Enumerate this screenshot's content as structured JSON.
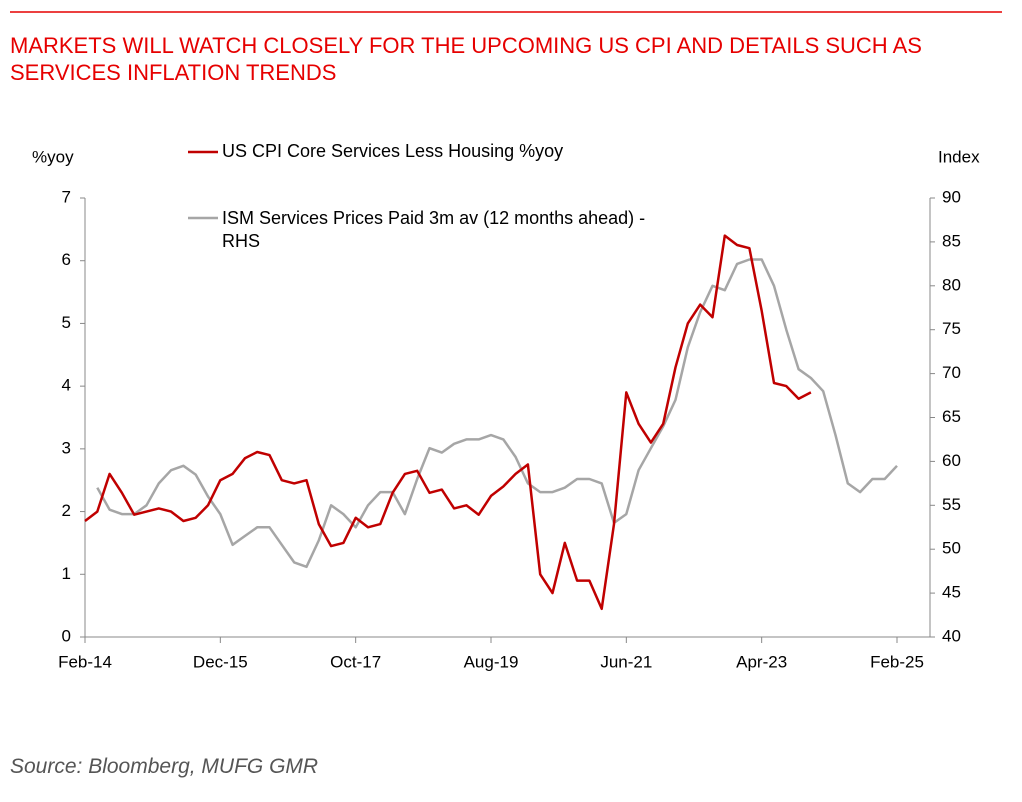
{
  "chart_data": {
    "type": "line",
    "title": "MARKETS WILL WATCH CLOSELY FOR THE UPCOMING US CPI AND DETAILS SUCH AS SERVICES INFLATION TRENDS",
    "source": "Source: Bloomberg, MUFG GMR",
    "y_label": "%yoy",
    "y2_label": "Index",
    "categories": [
      "Feb-14",
      null,
      null,
      null,
      null,
      null,
      null,
      null,
      null,
      null,
      null,
      "Dec-15",
      null,
      null,
      null,
      null,
      null,
      null,
      null,
      null,
      null,
      null,
      "Oct-17",
      null,
      null,
      null,
      null,
      null,
      null,
      null,
      null,
      null,
      null,
      "Aug-19",
      null,
      null,
      null,
      null,
      null,
      null,
      null,
      null,
      null,
      null,
      "Jun-21",
      null,
      null,
      null,
      null,
      null,
      null,
      null,
      null,
      null,
      null,
      "Apr-23",
      null,
      null,
      null,
      null,
      null,
      null,
      null,
      null,
      null,
      null,
      "Feb-25"
    ],
    "ylim": [
      0,
      7
    ],
    "yticks": [
      0,
      1,
      2,
      3,
      4,
      5,
      6,
      7
    ],
    "y2lim": [
      40,
      90
    ],
    "y2ticks": [
      40,
      45,
      50,
      55,
      60,
      65,
      70,
      75,
      80,
      85,
      90
    ],
    "series": [
      {
        "name": "US CPI Core Services Less Housing %yoy",
        "color": "#c00000",
        "axis": "y",
        "values": [
          1.85,
          2.0,
          2.6,
          2.3,
          1.95,
          2.0,
          2.05,
          2.0,
          1.85,
          1.9,
          2.1,
          2.5,
          2.6,
          2.85,
          2.95,
          2.9,
          2.5,
          2.45,
          2.5,
          1.8,
          1.45,
          1.5,
          1.9,
          1.75,
          1.8,
          2.3,
          2.6,
          2.65,
          2.3,
          2.35,
          2.05,
          2.1,
          1.95,
          2.25,
          2.4,
          2.6,
          2.75,
          1.0,
          0.7,
          1.5,
          0.9,
          0.9,
          0.45,
          1.8,
          3.9,
          3.4,
          3.1,
          3.4,
          4.3,
          5.0,
          5.3,
          5.1,
          6.4,
          6.25,
          6.2,
          5.2,
          4.05,
          4.0,
          3.8,
          3.9,
          null,
          null,
          null,
          null,
          null,
          null,
          null
        ]
      },
      {
        "name": "ISM Services Prices Paid 3m av (12 months ahead) - RHS",
        "color": "#a6a6a6",
        "axis": "y2",
        "values": [
          null,
          57,
          54.5,
          54,
          54,
          55,
          57.5,
          59,
          59.5,
          58.5,
          56,
          54,
          50.5,
          51.5,
          52.5,
          52.5,
          50.5,
          48.5,
          48,
          51,
          55,
          54,
          52.5,
          55,
          56.5,
          56.5,
          54,
          58,
          61.5,
          61,
          62,
          62.5,
          62.5,
          63,
          62.5,
          60.5,
          57.5,
          56.5,
          56.5,
          57,
          58,
          58,
          57.5,
          53,
          54,
          59,
          61.5,
          64,
          67,
          73,
          77,
          80,
          79.5,
          82.5,
          83,
          83,
          80,
          75,
          70.5,
          69.5,
          68,
          63,
          57.5,
          56.5,
          58,
          58,
          59.5
        ]
      }
    ]
  }
}
